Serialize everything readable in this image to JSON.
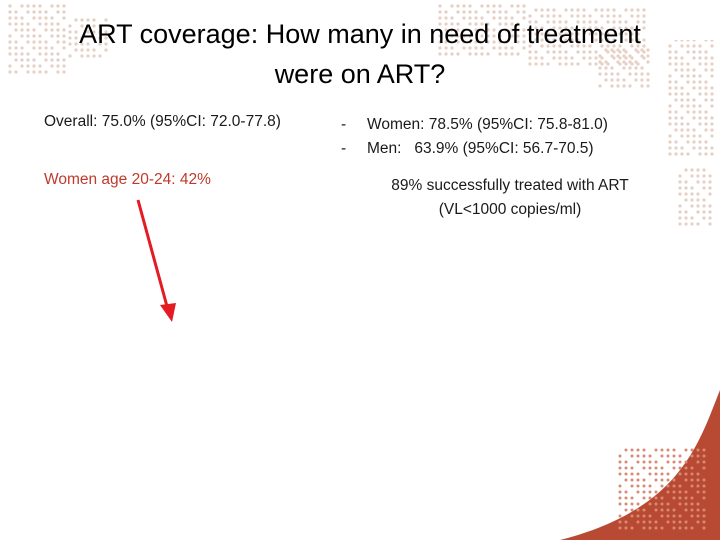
{
  "title": {
    "line1": "ART coverage: How many in need of treatment",
    "line2": "were on ART?"
  },
  "left": {
    "overall": "Overall: 75.0% (95%CI: 72.0-77.8)",
    "women_age": "Women age 20-24: 42%"
  },
  "right": {
    "bullets": [
      {
        "dash": "-",
        "text": "Women: 78.5% (95%CI: 75.8-81.0)"
      },
      {
        "dash": "-",
        "text": "Men:   63.9% (95%CI: 56.7-70.5)"
      }
    ],
    "treated_line1": "89% successfully treated with ART",
    "treated_line2": "(VL<1000 copies/ml)"
  },
  "colors": {
    "accent_red": "#c0392b",
    "arrow_red": "#e31b23",
    "map_dots": "#e7cfc4",
    "corner_brown": "#b84a33"
  }
}
